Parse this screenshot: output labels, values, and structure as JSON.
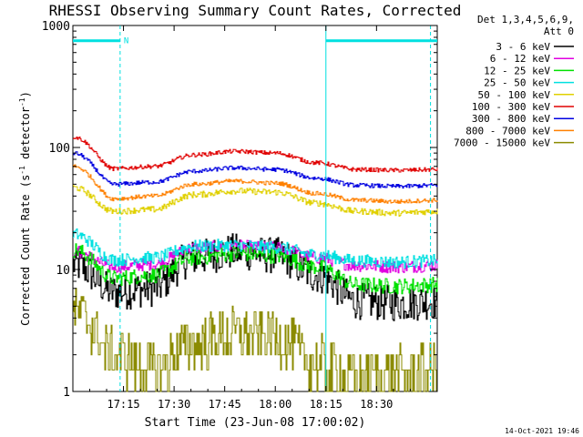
{
  "chart_data": {
    "type": "line",
    "title": "RHESSI Observing Summary Count Rates, Corrected",
    "xlabel": "Start Time (23-Jun-08 17:00:02)",
    "ylabel_main": "Corrected Count Rate (s",
    "ylabel_sup1": "-1",
    "ylabel_mid": " detector",
    "ylabel_sup2": "-1",
    "ylabel_end": ")",
    "yscale": "log",
    "ylim": [
      1,
      1000
    ],
    "xlim_minutes": [
      0,
      108
    ],
    "xticks": [
      {
        "minute": 15,
        "label": "17:15"
      },
      {
        "minute": 30,
        "label": "17:30"
      },
      {
        "minute": 45,
        "label": "17:45"
      },
      {
        "minute": 60,
        "label": "18:00"
      },
      {
        "minute": 75,
        "label": "18:15"
      },
      {
        "minute": 90,
        "label": "18:30"
      }
    ],
    "yticks": [
      {
        "value": 1,
        "label": "1"
      },
      {
        "value": 10,
        "label": "10"
      },
      {
        "value": 100,
        "label": "100"
      },
      {
        "value": 1000,
        "label": "1000"
      }
    ],
    "legend_header": [
      "Det 1,3,4,5,6,9,",
      "Att 0"
    ],
    "legend_position": "right",
    "series": [
      {
        "name": "3 - 6 keV",
        "color": "#000000",
        "wave": [
          11,
          6.5,
          7.0,
          12.5,
          14.0,
          13.0,
          9.0,
          5.5,
          5.3,
          5.5
        ],
        "noise": 0.35
      },
      {
        "name": "6 - 12 keV",
        "color": "#e000e0",
        "wave": [
          14,
          10.5,
          11.0,
          15.0,
          15.5,
          15.0,
          12.5,
          10.8,
          10.5,
          10.8
        ],
        "noise": 0.12
      },
      {
        "name": "12 - 25 keV",
        "color": "#00e000",
        "wave": [
          14.5,
          8.5,
          9.0,
          12.5,
          13.5,
          13.0,
          10.5,
          7.5,
          7.3,
          7.5
        ],
        "noise": 0.15
      },
      {
        "name": "25 - 50 keV",
        "color": "#00e0e0",
        "wave": [
          19.5,
          12.0,
          12.5,
          15.5,
          15.8,
          15.2,
          13.2,
          11.8,
          11.5,
          11.8
        ],
        "noise": 0.12
      },
      {
        "name": "50 - 100 keV",
        "color": "#e0d000",
        "wave": [
          47,
          30,
          31,
          41,
          44,
          43,
          35,
          30,
          29,
          30
        ],
        "noise": 0.06
      },
      {
        "name": "100 - 300 keV",
        "color": "#e00000",
        "wave": [
          122,
          67,
          70,
          87,
          93,
          90,
          75,
          66,
          65,
          66
        ],
        "noise": 0.04
      },
      {
        "name": "300 - 800 keV",
        "color": "#0000e0",
        "wave": [
          90,
          50,
          52,
          64,
          68,
          66,
          56,
          49,
          48,
          49
        ],
        "noise": 0.04
      },
      {
        "name": "800 - 7000 keV",
        "color": "#ff8000",
        "wave": [
          70,
          38,
          40,
          50,
          53,
          51,
          42,
          37,
          36,
          37
        ],
        "noise": 0.04
      },
      {
        "name": "7000 - 15000 keV",
        "color": "#8b8b00",
        "wave": [
          4.5,
          2.0,
          1.5,
          2.5,
          3.0,
          2.8,
          1.7,
          1.3,
          1.4,
          1.5
        ],
        "noise": 0.5
      }
    ],
    "saa_flag": {
      "label": "N",
      "value": 750,
      "start_minute": 0,
      "end_minute": 14,
      "start_minute2": 75,
      "end_minute2": 108
    },
    "vlines_minutes": [
      14,
      75,
      106
    ]
  },
  "footer": {
    "timestamp": "14-Oct-2021 19:46"
  }
}
